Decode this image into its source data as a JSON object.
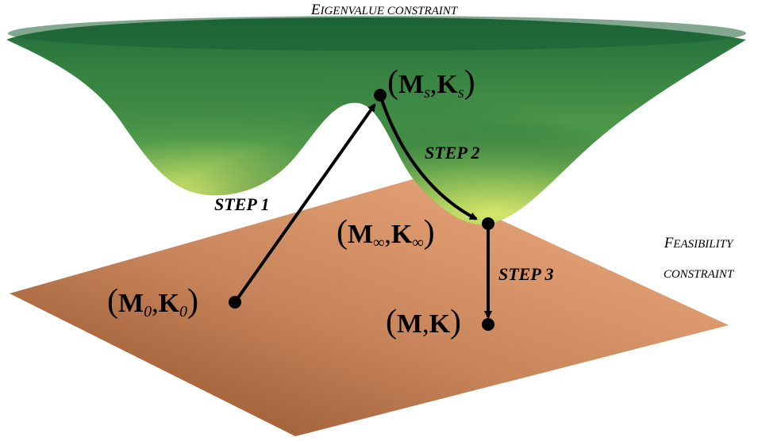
{
  "surfaces": {
    "eigenvalue": {
      "label_first": "E",
      "label_rest": "IGENVALUE CONSTRAINT",
      "color_top": "#1f6b3a",
      "color_mid": "#4f9a4a",
      "color_bottom": "#d8e86a"
    },
    "feasibility": {
      "label_line1_first": "F",
      "label_line1_rest": "EASIBILITY",
      "label_line2": "CONSTRAINT",
      "color_dark": "#8a4a25",
      "color_mid": "#c7845a",
      "color_light": "#f2b083"
    }
  },
  "points": {
    "p0": {
      "lparen": "(",
      "m": "M",
      "m_sub": "0",
      "comma": ",",
      "k": "K",
      "k_sub": "0",
      "rparen": ")"
    },
    "ps": {
      "lparen": "(",
      "m": "M",
      "m_sub": "s",
      "comma": ",",
      "k": "K",
      "k_sub": "s",
      "rparen": ")"
    },
    "pinf": {
      "lparen": "(",
      "m": "M",
      "m_sub": "∞",
      "comma": ",",
      "k": "K",
      "k_sub": "∞",
      "rparen": ")"
    },
    "pfinal": {
      "lparen": "(",
      "m": "M",
      "comma": ",",
      "k": "K",
      "rparen": ")"
    }
  },
  "steps": {
    "step1": "STEP 1",
    "step2": "STEP 2",
    "step3": "STEP 3"
  }
}
